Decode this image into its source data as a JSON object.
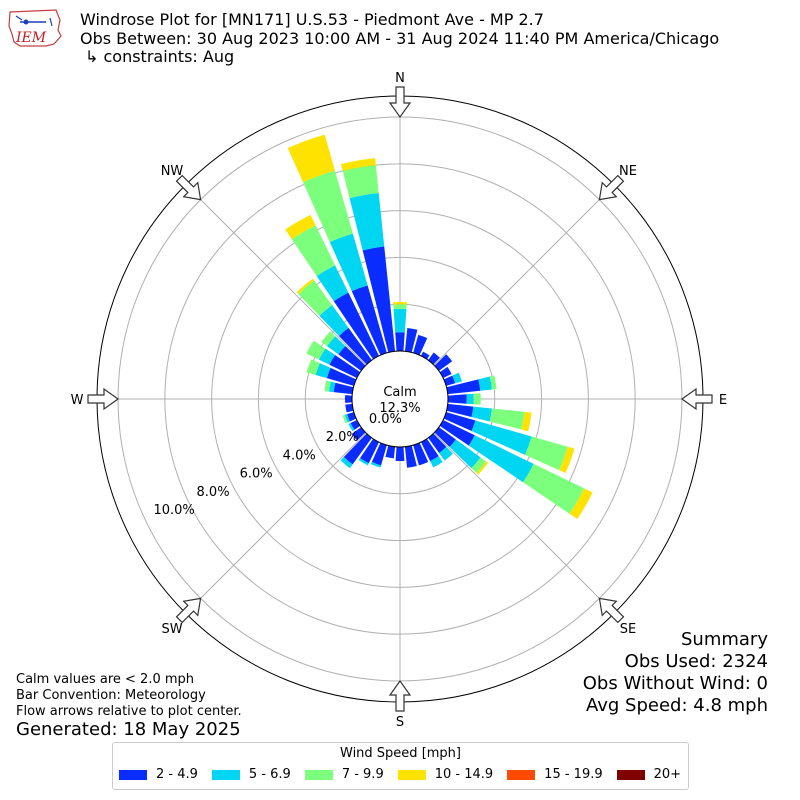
{
  "header": {
    "title": "Windrose Plot for [MN171] U.S.53 - Piedmont Ave - MP 2.7",
    "period": "Obs Between: 30 Aug 2023 10:00 AM - 31 Aug 2024 11:40 PM America/Chicago",
    "constraints": "↳ constraints: Aug"
  },
  "logo_text": "IEM",
  "notes": {
    "calm_def": "Calm values are < 2.0 mph",
    "bar_convention": "Bar Convention: Meteorology",
    "flow_arrows": "Flow arrows relative to plot center.",
    "generated": "Generated: 18 May 2025"
  },
  "summary": {
    "heading": "Summary",
    "obs_used": "Obs Used: 2324",
    "obs_without_wind": "Obs Without Wind: 0",
    "avg_speed": "Avg Speed: 4.8 mph"
  },
  "legend": {
    "title": "Wind Speed [mph]",
    "items": [
      {
        "label": "2 - 4.9",
        "color": "#0b2cff"
      },
      {
        "label": "5 - 6.9",
        "color": "#00d6f2"
      },
      {
        "label": "7 - 9.9",
        "color": "#7cff7c"
      },
      {
        "label": "10 - 14.9",
        "color": "#ffe300"
      },
      {
        "label": "15 - 19.9",
        "color": "#ff4a00"
      },
      {
        "label": "20+",
        "color": "#800000"
      }
    ]
  },
  "chart_data": {
    "type": "windrose",
    "calm_label": "Calm",
    "calm_value": "12.3%",
    "directions": [
      "N",
      "NE",
      "E",
      "SE",
      "S",
      "SW",
      "W",
      "NW"
    ],
    "radial_ticks": [
      "0.0%",
      "2.0%",
      "4.0%",
      "6.0%",
      "8.0%",
      "10.0%"
    ],
    "radial_tick_values": [
      0,
      2,
      4,
      6,
      8,
      10
    ],
    "rmax": 10.9,
    "bins": [
      "2 - 4.9",
      "5 - 6.9",
      "7 - 9.9",
      "10 - 14.9",
      "15 - 19.9",
      "20+"
    ],
    "sector_width_deg": 10,
    "sectors": [
      {
        "dir": 0,
        "v": [
          0.8,
          1.0,
          0.2,
          0.1,
          0,
          0
        ]
      },
      {
        "dir": 10,
        "v": [
          1.0,
          0,
          0,
          0,
          0,
          0
        ]
      },
      {
        "dir": 20,
        "v": [
          0.8,
          0,
          0,
          0,
          0,
          0
        ]
      },
      {
        "dir": 30,
        "v": [
          0.2,
          0,
          0,
          0,
          0,
          0
        ]
      },
      {
        "dir": 40,
        "v": [
          0.4,
          0,
          0,
          0,
          0,
          0
        ]
      },
      {
        "dir": 50,
        "v": [
          0.7,
          0,
          0,
          0,
          0,
          0
        ]
      },
      {
        "dir": 60,
        "v": [
          0.4,
          0,
          0,
          0,
          0,
          0
        ]
      },
      {
        "dir": 70,
        "v": [
          0.4,
          0.3,
          0,
          0,
          0,
          0
        ]
      },
      {
        "dir": 80,
        "v": [
          1.4,
          0.5,
          0.2,
          0,
          0,
          0
        ]
      },
      {
        "dir": 90,
        "v": [
          0.8,
          0.3,
          0.3,
          0,
          0,
          0
        ]
      },
      {
        "dir": 100,
        "v": [
          1.1,
          0.8,
          1.4,
          0.3,
          0,
          0
        ]
      },
      {
        "dir": 110,
        "v": [
          1.3,
          2.5,
          1.6,
          0.3,
          0,
          0
        ]
      },
      {
        "dir": 120,
        "v": [
          1.5,
          2.8,
          2.4,
          0.4,
          0,
          0
        ]
      },
      {
        "dir": 130,
        "v": [
          0.9,
          1.3,
          0.3,
          0.1,
          0,
          0
        ]
      },
      {
        "dir": 140,
        "v": [
          0.8,
          0.4,
          0,
          0,
          0,
          0
        ]
      },
      {
        "dir": 150,
        "v": [
          0.9,
          0.3,
          0,
          0,
          0,
          0
        ]
      },
      {
        "dir": 160,
        "v": [
          0.9,
          0,
          0,
          0,
          0,
          0
        ]
      },
      {
        "dir": 170,
        "v": [
          0.9,
          0,
          0,
          0,
          0,
          0
        ]
      },
      {
        "dir": 180,
        "v": [
          0.6,
          0,
          0,
          0,
          0,
          0
        ]
      },
      {
        "dir": 190,
        "v": [
          0.5,
          0,
          0,
          0,
          0,
          0
        ]
      },
      {
        "dir": 200,
        "v": [
          0.9,
          0.1,
          0,
          0,
          0,
          0
        ]
      },
      {
        "dir": 210,
        "v": [
          1.0,
          0.1,
          0,
          0,
          0,
          0
        ]
      },
      {
        "dir": 220,
        "v": [
          1.4,
          0.2,
          0,
          0,
          0,
          0
        ]
      },
      {
        "dir": 230,
        "v": [
          0.5,
          0,
          0,
          0,
          0,
          0
        ]
      },
      {
        "dir": 240,
        "v": [
          0.3,
          0.1,
          0,
          0,
          0,
          0
        ]
      },
      {
        "dir": 250,
        "v": [
          0.3,
          0.1,
          0.1,
          0,
          0,
          0
        ]
      },
      {
        "dir": 260,
        "v": [
          0.3,
          0,
          0,
          0,
          0,
          0
        ]
      },
      {
        "dir": 270,
        "v": [
          0.3,
          0,
          0,
          0,
          0,
          0
        ]
      },
      {
        "dir": 280,
        "v": [
          0.8,
          0.2,
          0.2,
          0,
          0,
          0
        ]
      },
      {
        "dir": 290,
        "v": [
          1.2,
          0.5,
          0.4,
          0,
          0,
          0
        ]
      },
      {
        "dir": 300,
        "v": [
          1.3,
          0.5,
          0.6,
          0,
          0,
          0
        ]
      },
      {
        "dir": 310,
        "v": [
          1.2,
          0.6,
          0.3,
          0,
          0,
          0
        ]
      },
      {
        "dir": 320,
        "v": [
          1.7,
          1.2,
          1.3,
          0.1,
          0,
          0
        ]
      },
      {
        "dir": 330,
        "v": [
          3.0,
          1.3,
          1.9,
          0.5,
          0,
          0
        ]
      },
      {
        "dir": 340,
        "v": [
          3.0,
          2.3,
          2.8,
          1.6,
          0,
          0
        ]
      },
      {
        "dir": 350,
        "v": [
          4.5,
          2.3,
          1.2,
          0.3,
          0,
          0
        ]
      }
    ]
  }
}
